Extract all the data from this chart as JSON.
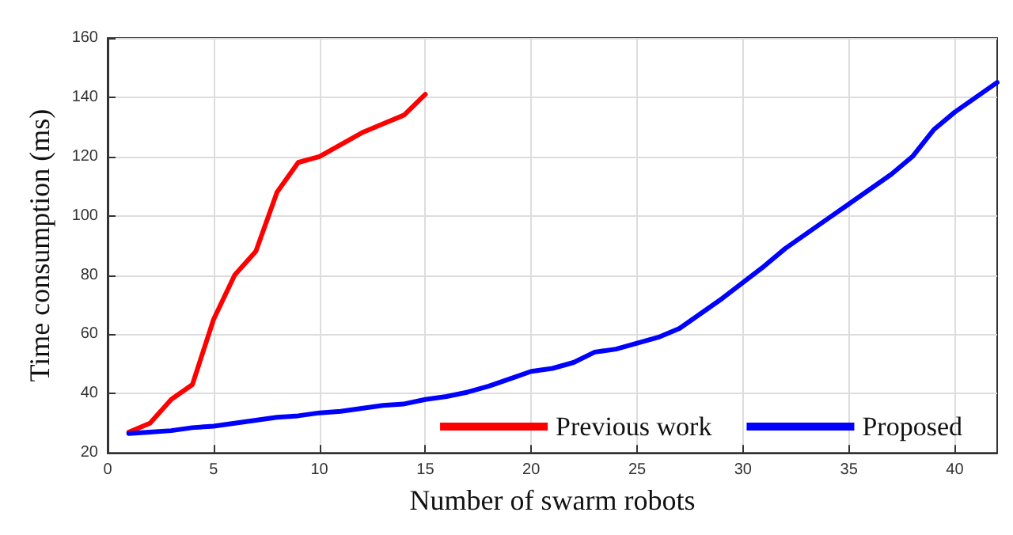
{
  "chart_data": {
    "type": "line",
    "xlabel": "Number of swarm robots",
    "ylabel": "Time consumption (ms)",
    "xlim": [
      0,
      42
    ],
    "xticks": [
      0,
      5,
      10,
      15,
      20,
      25,
      30,
      35,
      40
    ],
    "ylim": [
      20,
      160
    ],
    "yticks": [
      20,
      40,
      60,
      80,
      100,
      120,
      140,
      160
    ],
    "grid": true,
    "legend": "bottom right",
    "marker": "none",
    "line_style": "solid",
    "series": [
      {
        "name": "Previous work",
        "color": "#ff0000",
        "x": [
          1,
          2,
          3,
          4,
          5,
          6,
          7,
          8,
          9,
          10,
          11,
          12,
          13,
          14,
          15
        ],
        "values": [
          27,
          30,
          38,
          43,
          65,
          80,
          88,
          108,
          118,
          120,
          124,
          128,
          131,
          134,
          141
        ]
      },
      {
        "name": "Proposed",
        "color": "#0000ff",
        "x": [
          1,
          2,
          3,
          4,
          5,
          6,
          7,
          8,
          9,
          10,
          11,
          12,
          13,
          14,
          15,
          16,
          17,
          18,
          19,
          20,
          21,
          22,
          23,
          24,
          25,
          26,
          27,
          28,
          29,
          30,
          31,
          32,
          33,
          34,
          35,
          36,
          37,
          38,
          39,
          40,
          41,
          42
        ],
        "values": [
          26.5,
          27,
          27.5,
          28.5,
          29,
          30,
          31,
          32,
          32.5,
          33.5,
          34,
          35,
          36,
          36.5,
          38,
          39,
          40.5,
          42.5,
          45,
          47.5,
          48.5,
          50.5,
          54,
          55,
          57,
          59,
          62,
          67,
          72,
          77.5,
          83,
          89,
          94,
          99,
          104,
          109,
          114,
          120,
          129,
          135,
          140,
          145
        ]
      }
    ]
  }
}
